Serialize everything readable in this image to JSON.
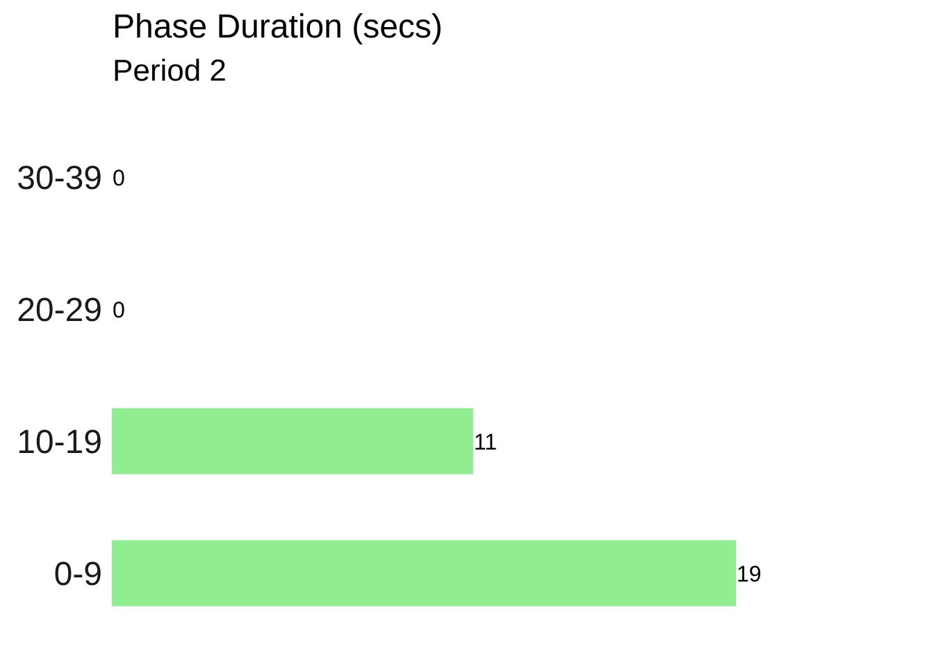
{
  "chart_data": {
    "type": "bar",
    "orientation": "horizontal",
    "title": "Phase Duration (secs)",
    "subtitle": "Period 2",
    "categories": [
      "0-9",
      "10-19",
      "20-29",
      "30-39"
    ],
    "values": [
      19,
      11,
      0,
      0
    ],
    "xlabel": "",
    "ylabel": "",
    "xlim": [
      0,
      19
    ],
    "grid": false,
    "data_labels": true,
    "bar_color": "#90EE90"
  }
}
